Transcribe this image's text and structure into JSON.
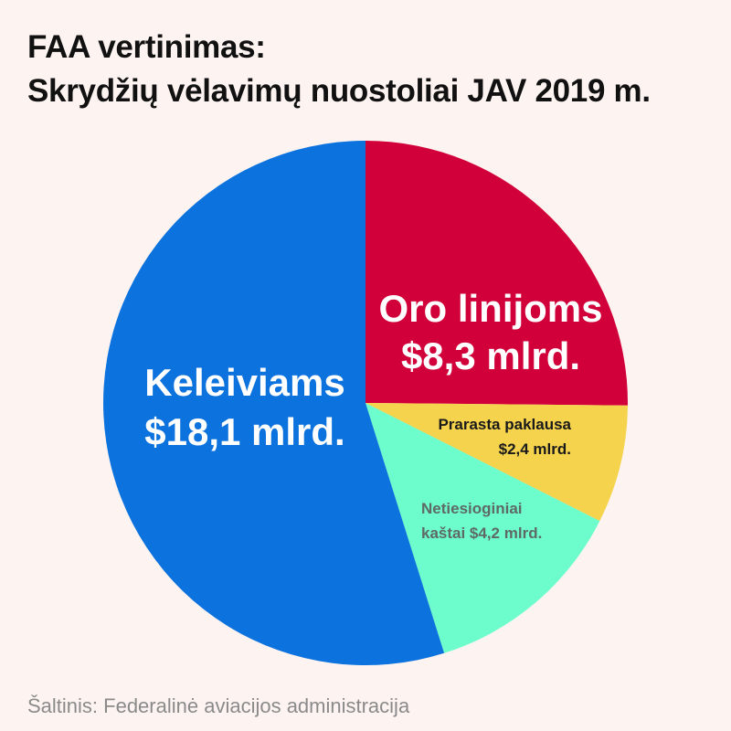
{
  "title_line1": "FAA vertinimas:",
  "title_line2": "Skrydžių vėlavimų nuostoliai JAV 2019 m.",
  "source": "Šaltinis: Federalinė aviacijos administracija",
  "colors": {
    "background": "#fdf4f1",
    "oro_linijoms": "#d1003a",
    "prarasta_paklausa": "#f5d34d",
    "netiesioginiai": "#6dfccb",
    "keleiviams": "#0c72de"
  },
  "chart_data": {
    "type": "pie",
    "start": "12 o'clock",
    "direction": "clockwise",
    "slices": [
      {
        "id": "oro-linijoms",
        "value": 8.3,
        "color": "#d1003a",
        "label_lines": [
          "Oro linijoms",
          "$8,3 mlrd."
        ],
        "label_color": "#ffffff",
        "label_size": "large"
      },
      {
        "id": "prarasta-paklausa",
        "value": 2.4,
        "color": "#f5d34d",
        "label_lines": [
          "Prarasta paklausa",
          "$2,4 mlrd."
        ],
        "label_color": "#1a1a1a",
        "label_size": "small"
      },
      {
        "id": "netiesioginiai-kastai",
        "value": 4.2,
        "color": "#6dfccb",
        "label_lines": [
          "Netiesioginiai",
          "kaštai $4,2 mlrd."
        ],
        "label_color": "#5e6a66",
        "label_size": "small"
      },
      {
        "id": "keleiviams",
        "value": 18.1,
        "color": "#0c72de",
        "label_lines": [
          "Keleiviams",
          "$18,1 mlrd."
        ],
        "label_color": "#ffffff",
        "label_size": "large"
      }
    ]
  }
}
